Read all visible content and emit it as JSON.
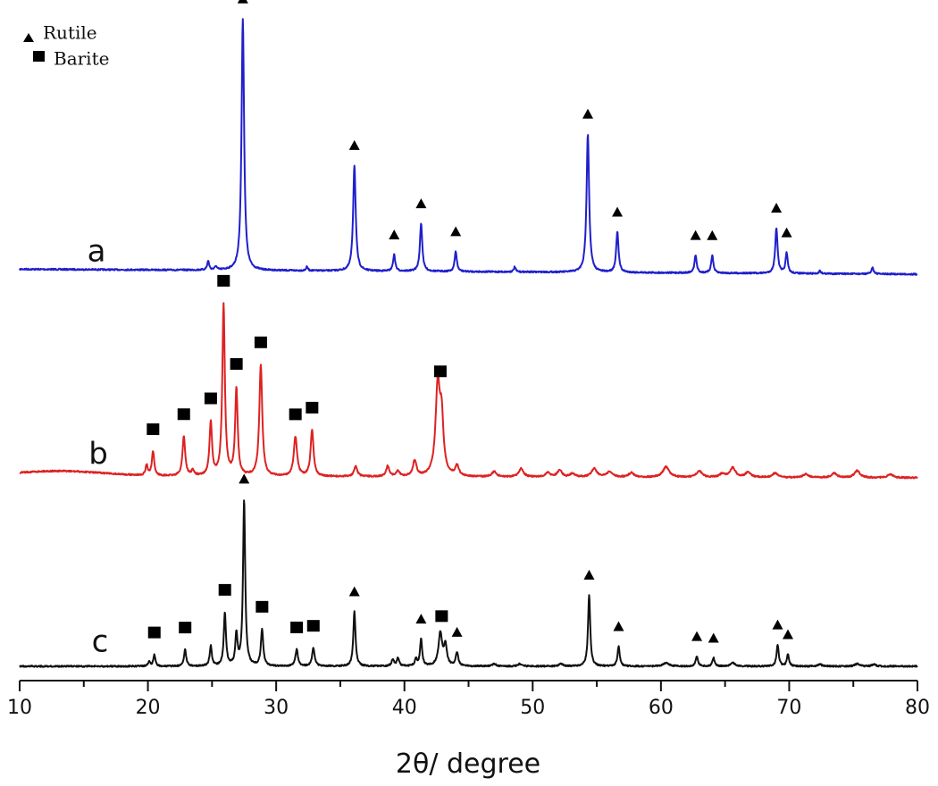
{
  "chart_data": {
    "type": "line",
    "xlabel": "2θ/ degree",
    "ylabel": "",
    "xlim": [
      10,
      80
    ],
    "xticks": [
      10,
      20,
      30,
      40,
      50,
      60,
      70,
      80
    ],
    "grid": false,
    "legend": {
      "placement": "top-left",
      "entries": [
        {
          "marker": "triangle",
          "label": "Rutile"
        },
        {
          "marker": "square",
          "label": "Barite"
        }
      ]
    },
    "series": [
      {
        "name": "a",
        "color": "#1f1fcc",
        "baseline_tilt": 0.02,
        "peaks": [
          [
            24.7,
            0.035,
            0.11
          ],
          [
            25.3,
            0.015,
            0.1
          ],
          [
            27.4,
            1.0,
            0.14
          ],
          [
            32.4,
            0.015,
            0.1
          ],
          [
            36.1,
            0.42,
            0.14
          ],
          [
            39.2,
            0.065,
            0.12
          ],
          [
            41.3,
            0.19,
            0.13
          ],
          [
            44.0,
            0.08,
            0.12
          ],
          [
            48.6,
            0.02,
            0.1
          ],
          [
            54.3,
            0.55,
            0.14
          ],
          [
            56.6,
            0.16,
            0.13
          ],
          [
            62.7,
            0.07,
            0.12
          ],
          [
            64.0,
            0.07,
            0.12
          ],
          [
            69.0,
            0.18,
            0.13
          ],
          [
            69.8,
            0.08,
            0.12
          ],
          [
            72.4,
            0.012,
            0.1
          ],
          [
            76.5,
            0.025,
            0.12
          ]
        ]
      },
      {
        "name": "b",
        "color": "#dd2222",
        "baseline_tilt": 0.01,
        "hump": [
          13.0,
          0.03,
          3.5
        ],
        "peaks": [
          [
            19.9,
            0.06,
            0.12
          ],
          [
            20.4,
            0.14,
            0.13
          ],
          [
            22.8,
            0.23,
            0.15
          ],
          [
            23.5,
            0.03,
            0.15
          ],
          [
            24.9,
            0.31,
            0.14
          ],
          [
            25.9,
            1.0,
            0.14
          ],
          [
            26.9,
            0.51,
            0.14
          ],
          [
            28.8,
            0.65,
            0.16
          ],
          [
            31.5,
            0.23,
            0.18
          ],
          [
            32.8,
            0.27,
            0.16
          ],
          [
            36.2,
            0.06,
            0.18
          ],
          [
            38.7,
            0.06,
            0.18
          ],
          [
            39.5,
            0.03,
            0.18
          ],
          [
            40.8,
            0.09,
            0.2
          ],
          [
            42.6,
            0.52,
            0.24
          ],
          [
            42.9,
            0.3,
            0.2
          ],
          [
            44.1,
            0.06,
            0.2
          ],
          [
            47.0,
            0.03,
            0.25
          ],
          [
            49.1,
            0.05,
            0.25
          ],
          [
            51.2,
            0.025,
            0.25
          ],
          [
            52.1,
            0.04,
            0.25
          ],
          [
            53.1,
            0.02,
            0.25
          ],
          [
            54.8,
            0.05,
            0.3
          ],
          [
            56.0,
            0.03,
            0.3
          ],
          [
            57.7,
            0.025,
            0.3
          ],
          [
            60.4,
            0.06,
            0.35
          ],
          [
            63.0,
            0.035,
            0.3
          ],
          [
            64.8,
            0.02,
            0.3
          ],
          [
            65.6,
            0.055,
            0.3
          ],
          [
            66.8,
            0.03,
            0.3
          ],
          [
            68.9,
            0.025,
            0.3
          ],
          [
            71.3,
            0.02,
            0.3
          ],
          [
            73.5,
            0.025,
            0.3
          ],
          [
            75.3,
            0.04,
            0.3
          ],
          [
            77.9,
            0.02,
            0.3
          ]
        ]
      },
      {
        "name": "c",
        "color": "#111111",
        "baseline_tilt": 0.0,
        "peaks": [
          [
            20.1,
            0.03,
            0.1
          ],
          [
            20.5,
            0.07,
            0.11
          ],
          [
            22.9,
            0.1,
            0.12
          ],
          [
            24.9,
            0.12,
            0.12
          ],
          [
            26.0,
            0.32,
            0.12
          ],
          [
            26.9,
            0.19,
            0.12
          ],
          [
            27.5,
            1.0,
            0.12
          ],
          [
            28.9,
            0.22,
            0.13
          ],
          [
            31.6,
            0.1,
            0.14
          ],
          [
            32.9,
            0.11,
            0.14
          ],
          [
            36.1,
            0.33,
            0.12
          ],
          [
            39.1,
            0.04,
            0.14
          ],
          [
            39.5,
            0.05,
            0.12
          ],
          [
            40.9,
            0.04,
            0.12
          ],
          [
            41.3,
            0.16,
            0.12
          ],
          [
            42.8,
            0.2,
            0.2
          ],
          [
            43.2,
            0.12,
            0.16
          ],
          [
            44.1,
            0.08,
            0.14
          ],
          [
            47.0,
            0.015,
            0.2
          ],
          [
            49.0,
            0.015,
            0.2
          ],
          [
            52.2,
            0.015,
            0.2
          ],
          [
            54.4,
            0.43,
            0.12
          ],
          [
            56.7,
            0.12,
            0.12
          ],
          [
            60.4,
            0.02,
            0.3
          ],
          [
            62.8,
            0.06,
            0.12
          ],
          [
            64.1,
            0.05,
            0.12
          ],
          [
            65.6,
            0.02,
            0.25
          ],
          [
            69.1,
            0.13,
            0.12
          ],
          [
            69.9,
            0.07,
            0.12
          ],
          [
            72.4,
            0.012,
            0.2
          ],
          [
            75.3,
            0.015,
            0.25
          ],
          [
            76.6,
            0.012,
            0.2
          ]
        ]
      }
    ],
    "annotations": [
      {
        "series": "a",
        "marker": "triangle",
        "x": [
          27.4,
          36.1,
          39.2,
          41.3,
          44.0,
          54.3,
          56.6,
          62.7,
          64.0,
          69.0,
          69.8
        ]
      },
      {
        "series": "b",
        "marker": "square",
        "x": [
          20.4,
          22.8,
          24.9,
          25.9,
          26.9,
          28.8,
          31.5,
          32.8,
          42.8
        ]
      },
      {
        "series": "c",
        "marker": "square",
        "x": [
          20.5,
          22.9,
          26.0,
          28.9,
          31.6,
          32.9,
          42.9
        ]
      },
      {
        "series": "c",
        "marker": "triangle",
        "x": [
          27.5,
          36.1,
          41.3,
          44.1,
          54.4,
          56.7,
          62.8,
          64.1,
          69.1,
          69.9
        ]
      }
    ]
  }
}
